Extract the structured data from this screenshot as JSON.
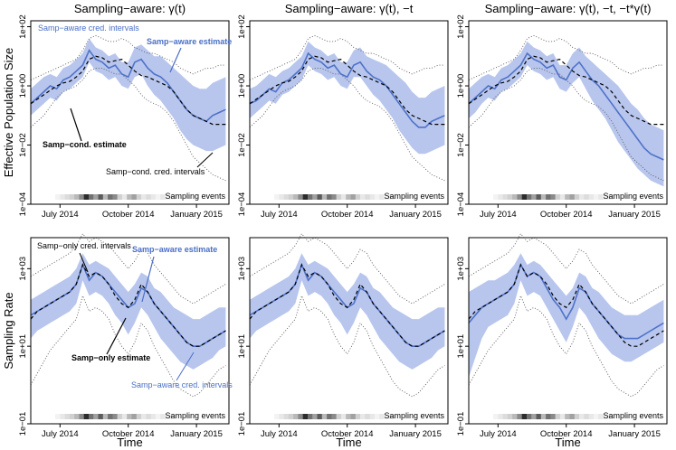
{
  "chart_data": {
    "type": "line",
    "panel_titles": [
      "Sampling−aware: γ(t)",
      "Sampling−aware: γ(t), −t",
      "Sampling−aware: γ(t), −t, −t*γ(t)"
    ],
    "row_ylabels": [
      "Effective Population Size",
      "Sampling Rate"
    ],
    "xlabel": "Time",
    "x_ticks": [
      "July 2014",
      "October 2014",
      "January 2015"
    ],
    "x_tick_pos": [
      0.18,
      0.6,
      1.02
    ],
    "x_range": [
      0.0,
      1.22
    ],
    "ne_ticks": [
      "1e−04",
      "1e−02",
      "1e+00",
      "1e+02"
    ],
    "ne_tick_logs": [
      -4,
      -2,
      0,
      2
    ],
    "ne_log_range": [
      -4,
      2.2
    ],
    "sr_ticks": [
      "1e−01",
      "1e+01",
      "1e+03"
    ],
    "sr_tick_logs": [
      -1,
      1,
      3
    ],
    "sr_log_range": [
      -1,
      3.8
    ],
    "sampling_events_label": "Sampling events",
    "sampling_density": [
      0.05,
      0.1,
      0.15,
      0.2,
      0.3,
      0.5,
      0.9,
      0.6,
      0.4,
      0.7,
      0.3,
      0.6,
      0.5,
      0.2,
      0.1,
      0.3,
      0.4,
      0.2,
      0.1,
      0.15,
      0.1,
      0.05,
      0.1,
      0.05,
      0.05
    ],
    "time_grid": [
      0.0,
      0.04,
      0.08,
      0.12,
      0.16,
      0.2,
      0.24,
      0.28,
      0.32,
      0.36,
      0.4,
      0.44,
      0.48,
      0.52,
      0.56,
      0.6,
      0.64,
      0.68,
      0.72,
      0.76,
      0.8,
      0.84,
      0.88,
      0.92,
      0.96,
      1.0,
      1.04,
      1.08,
      1.12,
      1.16,
      1.2
    ],
    "legend_text": {
      "ne_aware_ci": "Samp−aware cred. intervals",
      "ne_aware_est": "Samp−aware estimate",
      "ne_cond_est": "Samp−cond. estimate",
      "ne_cond_ci": "Samp−cond. cred. intervals",
      "sr_only_ci": "Samp−only cred. intervals",
      "sr_aware_est": "Samp−aware estimate",
      "sr_only_est": "Samp−only estimate",
      "sr_aware_ci": "Samp−aware cred. intervals"
    },
    "ne_cond_est": [
      -0.6,
      -0.45,
      -0.3,
      -0.15,
      0.0,
      0.1,
      0.15,
      0.3,
      0.5,
      0.9,
      1.0,
      0.95,
      0.8,
      0.85,
      0.9,
      0.7,
      0.5,
      0.35,
      0.3,
      0.2,
      0.1,
      0.0,
      -0.2,
      -0.5,
      -0.8,
      -1.0,
      -1.1,
      -1.2,
      -1.3,
      -1.3,
      -1.3
    ],
    "ne_cond_lo": [
      -1.4,
      -1.2,
      -1.0,
      -0.7,
      -0.4,
      -0.2,
      -0.1,
      0.0,
      0.2,
      0.5,
      0.6,
      0.6,
      0.5,
      0.4,
      0.4,
      0.2,
      0.0,
      -0.3,
      -0.5,
      -0.6,
      -0.7,
      -0.9,
      -1.2,
      -1.6,
      -2.0,
      -2.4,
      -2.6,
      -2.8,
      -3.0,
      -3.1,
      -3.2
    ],
    "ne_cond_hi": [
      0.2,
      0.3,
      0.4,
      0.5,
      0.6,
      0.7,
      0.8,
      0.9,
      1.2,
      1.6,
      1.7,
      1.6,
      1.5,
      1.5,
      1.6,
      1.5,
      1.3,
      1.2,
      1.1,
      1.1,
      1.0,
      0.9,
      0.8,
      0.6,
      0.5,
      0.4,
      0.5,
      0.6,
      0.6,
      0.7,
      0.7
    ],
    "panels": [
      {
        "ne_est": [
          -0.6,
          -0.4,
          -0.2,
          0.0,
          -0.1,
          0.2,
          0.3,
          0.5,
          0.7,
          1.2,
          0.9,
          0.8,
          0.6,
          0.7,
          0.4,
          0.3,
          0.8,
          0.9,
          0.6,
          0.4,
          0.3,
          0.1,
          -0.2,
          -0.5,
          -0.8,
          -1.0,
          -1.1,
          -1.2,
          -1.0,
          -0.9,
          -0.8
        ],
        "ne_lo": [
          -1.0,
          -0.8,
          -0.6,
          -0.4,
          -0.5,
          -0.2,
          -0.1,
          0.1,
          0.3,
          0.8,
          0.5,
          0.4,
          0.2,
          0.3,
          0.0,
          -0.1,
          0.3,
          0.4,
          0.0,
          -0.3,
          -0.5,
          -0.8,
          -1.1,
          -1.5,
          -1.8,
          -2.0,
          -2.1,
          -2.2,
          -2.2,
          -2.1,
          -2.0
        ],
        "ne_hi": [
          -0.1,
          0.1,
          0.3,
          0.4,
          0.3,
          0.6,
          0.7,
          0.9,
          1.1,
          1.6,
          1.3,
          1.2,
          1.0,
          1.1,
          0.8,
          0.8,
          1.3,
          1.4,
          1.2,
          1.0,
          1.0,
          0.8,
          0.6,
          0.4,
          0.2,
          0.0,
          -0.1,
          -0.1,
          0.1,
          0.2,
          0.3
        ],
        "sr_est": [
          1.8,
          1.9,
          2.0,
          2.1,
          2.2,
          2.3,
          2.4,
          2.6,
          3.1,
          2.7,
          2.9,
          2.8,
          2.6,
          2.4,
          2.2,
          2.0,
          2.1,
          2.5,
          2.4,
          2.1,
          1.9,
          1.7,
          1.5,
          1.3,
          1.1,
          1.0,
          1.0,
          1.1,
          1.2,
          1.3,
          1.4
        ],
        "sr_lo": [
          1.2,
          1.4,
          1.5,
          1.6,
          1.7,
          1.8,
          1.9,
          2.1,
          2.7,
          2.3,
          2.4,
          2.3,
          2.1,
          1.8,
          1.6,
          1.3,
          1.6,
          2.0,
          1.8,
          1.5,
          1.2,
          1.0,
          0.8,
          0.6,
          0.5,
          0.4,
          0.5,
          0.6,
          0.7,
          0.9,
          1.0
        ],
        "sr_hi": [
          2.2,
          2.3,
          2.4,
          2.5,
          2.6,
          2.7,
          2.8,
          3.0,
          3.4,
          3.1,
          3.2,
          3.1,
          3.0,
          2.8,
          2.6,
          2.4,
          2.6,
          2.9,
          2.8,
          2.5,
          2.4,
          2.2,
          2.0,
          1.9,
          1.8,
          1.7,
          1.7,
          1.8,
          1.9,
          2.0,
          2.0
        ],
        "sr_only_est": [
          1.7,
          1.9,
          2.0,
          2.1,
          2.2,
          2.3,
          2.4,
          2.6,
          3.1,
          2.8,
          2.9,
          2.8,
          2.6,
          2.3,
          2.1,
          2.0,
          2.2,
          2.6,
          2.4,
          2.1,
          1.9,
          1.7,
          1.5,
          1.3,
          1.1,
          1.0,
          1.0,
          1.1,
          1.2,
          1.3,
          1.4
        ],
        "sr_only_lo": [
          0.0,
          0.3,
          0.6,
          0.9,
          1.1,
          1.3,
          1.5,
          1.7,
          2.3,
          1.9,
          2.0,
          1.9,
          1.7,
          1.3,
          1.0,
          0.8,
          1.1,
          1.6,
          1.4,
          1.0,
          0.7,
          0.4,
          0.1,
          -0.1,
          -0.2,
          -0.3,
          -0.2,
          0.0,
          0.2,
          0.4,
          0.5
        ],
        "sr_only_hi": [
          2.8,
          2.9,
          3.0,
          3.1,
          3.2,
          3.3,
          3.4,
          3.6,
          3.9,
          3.7,
          3.8,
          3.7,
          3.6,
          3.4,
          3.2,
          3.0,
          3.2,
          3.5,
          3.4,
          3.1,
          2.9,
          2.7,
          2.5,
          2.3,
          2.2,
          2.1,
          2.2,
          2.3,
          2.4,
          2.5,
          2.6
        ]
      },
      {
        "ne_est": [
          -0.6,
          -0.5,
          -0.3,
          -0.1,
          -0.2,
          0.1,
          0.2,
          0.4,
          0.6,
          1.1,
          0.9,
          0.8,
          0.6,
          0.7,
          0.4,
          0.3,
          0.7,
          0.8,
          0.5,
          0.3,
          0.2,
          0.0,
          -0.3,
          -0.6,
          -0.9,
          -1.2,
          -1.4,
          -1.4,
          -1.2,
          -1.1,
          -1.0
        ],
        "ne_lo": [
          -1.1,
          -0.9,
          -0.7,
          -0.5,
          -0.6,
          -0.3,
          -0.2,
          0.0,
          0.2,
          0.7,
          0.5,
          0.4,
          0.2,
          0.3,
          0.0,
          -0.1,
          0.3,
          0.3,
          0.0,
          -0.3,
          -0.5,
          -0.8,
          -1.1,
          -1.5,
          -1.8,
          -2.1,
          -2.3,
          -2.3,
          -2.2,
          -2.1,
          -2.0
        ],
        "ne_hi": [
          -0.1,
          0.0,
          0.2,
          0.4,
          0.3,
          0.5,
          0.6,
          0.8,
          1.0,
          1.5,
          1.3,
          1.2,
          1.0,
          1.1,
          0.8,
          0.8,
          1.2,
          1.3,
          1.0,
          0.9,
          0.8,
          0.7,
          0.5,
          0.3,
          0.1,
          -0.2,
          -0.4,
          -0.4,
          -0.2,
          -0.1,
          0.0
        ],
        "sr_est": [
          1.8,
          1.9,
          2.0,
          2.1,
          2.2,
          2.3,
          2.4,
          2.6,
          3.1,
          2.7,
          2.9,
          2.8,
          2.6,
          2.4,
          2.2,
          2.0,
          2.1,
          2.5,
          2.4,
          2.1,
          1.9,
          1.7,
          1.5,
          1.3,
          1.1,
          1.0,
          1.0,
          1.1,
          1.2,
          1.3,
          1.4
        ],
        "sr_lo": [
          1.2,
          1.4,
          1.5,
          1.6,
          1.7,
          1.8,
          1.9,
          2.1,
          2.7,
          2.3,
          2.4,
          2.3,
          2.1,
          1.8,
          1.6,
          1.3,
          1.6,
          2.0,
          1.8,
          1.5,
          1.2,
          1.0,
          0.8,
          0.6,
          0.5,
          0.4,
          0.5,
          0.6,
          0.7,
          0.9,
          1.0
        ],
        "sr_hi": [
          2.2,
          2.3,
          2.4,
          2.5,
          2.6,
          2.7,
          2.8,
          3.0,
          3.4,
          3.1,
          3.2,
          3.1,
          3.0,
          2.8,
          2.6,
          2.4,
          2.6,
          2.9,
          2.8,
          2.5,
          2.4,
          2.2,
          2.0,
          1.9,
          1.8,
          1.7,
          1.7,
          1.8,
          1.9,
          2.0,
          2.0
        ],
        "sr_only_est": [
          1.7,
          1.9,
          2.0,
          2.1,
          2.2,
          2.3,
          2.4,
          2.6,
          3.1,
          2.8,
          2.9,
          2.8,
          2.6,
          2.3,
          2.1,
          2.0,
          2.2,
          2.6,
          2.4,
          2.1,
          1.9,
          1.7,
          1.5,
          1.3,
          1.1,
          1.0,
          1.0,
          1.1,
          1.2,
          1.3,
          1.4
        ],
        "sr_only_lo": [
          0.0,
          0.3,
          0.6,
          0.9,
          1.1,
          1.3,
          1.5,
          1.7,
          2.3,
          1.9,
          2.0,
          1.9,
          1.7,
          1.3,
          1.0,
          0.8,
          1.1,
          1.6,
          1.4,
          1.0,
          0.7,
          0.4,
          0.1,
          -0.1,
          -0.2,
          -0.3,
          -0.2,
          0.0,
          0.2,
          0.4,
          0.5
        ],
        "sr_only_hi": [
          2.8,
          2.9,
          3.0,
          3.1,
          3.2,
          3.3,
          3.4,
          3.6,
          3.9,
          3.7,
          3.8,
          3.7,
          3.6,
          3.4,
          3.2,
          3.0,
          3.2,
          3.5,
          3.4,
          3.1,
          2.9,
          2.7,
          2.5,
          2.3,
          2.2,
          2.1,
          2.2,
          2.3,
          2.4,
          2.5,
          2.6
        ]
      },
      {
        "ne_est": [
          -0.6,
          -0.4,
          -0.2,
          0.0,
          -0.1,
          0.2,
          0.3,
          0.5,
          0.7,
          1.1,
          0.9,
          0.8,
          0.6,
          0.7,
          0.3,
          0.2,
          0.6,
          0.8,
          0.5,
          0.2,
          0.0,
          -0.3,
          -0.6,
          -0.9,
          -1.2,
          -1.5,
          -1.8,
          -2.1,
          -2.3,
          -2.4,
          -2.5
        ],
        "ne_lo": [
          -1.1,
          -0.9,
          -0.6,
          -0.4,
          -0.5,
          -0.2,
          -0.1,
          0.1,
          0.3,
          0.7,
          0.5,
          0.4,
          0.2,
          0.3,
          -0.1,
          -0.2,
          0.1,
          0.3,
          -0.1,
          -0.5,
          -0.8,
          -1.1,
          -1.5,
          -1.9,
          -2.2,
          -2.5,
          -2.8,
          -3.0,
          -3.2,
          -3.3,
          -3.4
        ],
        "ne_hi": [
          -0.1,
          0.1,
          0.3,
          0.4,
          0.3,
          0.6,
          0.7,
          0.9,
          1.1,
          1.5,
          1.3,
          1.2,
          1.0,
          1.1,
          0.7,
          0.7,
          1.1,
          1.3,
          1.0,
          0.8,
          0.6,
          0.4,
          0.2,
          0.0,
          -0.3,
          -0.6,
          -0.8,
          -1.1,
          -1.3,
          -1.4,
          -1.5
        ],
        "sr_est": [
          1.6,
          1.8,
          2.0,
          2.1,
          2.2,
          2.3,
          2.4,
          2.6,
          3.1,
          2.8,
          2.9,
          2.8,
          2.5,
          2.2,
          2.0,
          1.7,
          2.0,
          2.5,
          2.4,
          2.1,
          1.9,
          1.7,
          1.5,
          1.3,
          1.2,
          1.2,
          1.2,
          1.3,
          1.4,
          1.5,
          1.6
        ],
        "sr_lo": [
          0.2,
          0.7,
          1.2,
          1.5,
          1.6,
          1.7,
          1.8,
          2.1,
          2.7,
          2.3,
          2.4,
          2.3,
          2.0,
          1.7,
          1.4,
          1.1,
          1.5,
          2.0,
          1.8,
          1.5,
          1.2,
          1.0,
          0.8,
          0.7,
          0.6,
          0.6,
          0.7,
          0.8,
          0.9,
          1.0,
          1.1
        ],
        "sr_hi": [
          2.4,
          2.5,
          2.6,
          2.7,
          2.7,
          2.8,
          2.9,
          3.1,
          3.4,
          3.1,
          3.2,
          3.1,
          2.9,
          2.7,
          2.5,
          2.3,
          2.5,
          2.9,
          2.8,
          2.5,
          2.4,
          2.2,
          2.0,
          1.9,
          1.8,
          1.8,
          1.8,
          1.9,
          2.0,
          2.1,
          2.2
        ],
        "sr_only_est": [
          1.7,
          1.9,
          2.0,
          2.1,
          2.2,
          2.3,
          2.4,
          2.6,
          3.1,
          2.8,
          2.9,
          2.8,
          2.6,
          2.3,
          2.1,
          2.0,
          2.2,
          2.6,
          2.4,
          2.1,
          1.9,
          1.7,
          1.5,
          1.3,
          1.1,
          1.0,
          1.0,
          1.1,
          1.2,
          1.3,
          1.4
        ],
        "sr_only_lo": [
          0.0,
          0.3,
          0.6,
          0.9,
          1.1,
          1.3,
          1.5,
          1.7,
          2.3,
          1.9,
          2.0,
          1.9,
          1.7,
          1.3,
          1.0,
          0.8,
          1.1,
          1.6,
          1.4,
          1.0,
          0.7,
          0.4,
          0.1,
          -0.1,
          -0.2,
          -0.3,
          -0.2,
          0.0,
          0.2,
          0.4,
          0.5
        ],
        "sr_only_hi": [
          2.8,
          2.9,
          3.0,
          3.1,
          3.2,
          3.3,
          3.4,
          3.6,
          3.9,
          3.7,
          3.8,
          3.7,
          3.6,
          3.4,
          3.2,
          3.0,
          3.2,
          3.5,
          3.4,
          3.1,
          2.9,
          2.7,
          2.5,
          2.3,
          2.2,
          2.1,
          2.2,
          2.3,
          2.4,
          2.5,
          2.6
        ]
      }
    ]
  },
  "colors": {
    "band": "#b8c6ee",
    "aware_line": "#4f72c8",
    "annot_blue": "#4a6fc6",
    "dashed": "#000000",
    "dotted": "#555555"
  }
}
